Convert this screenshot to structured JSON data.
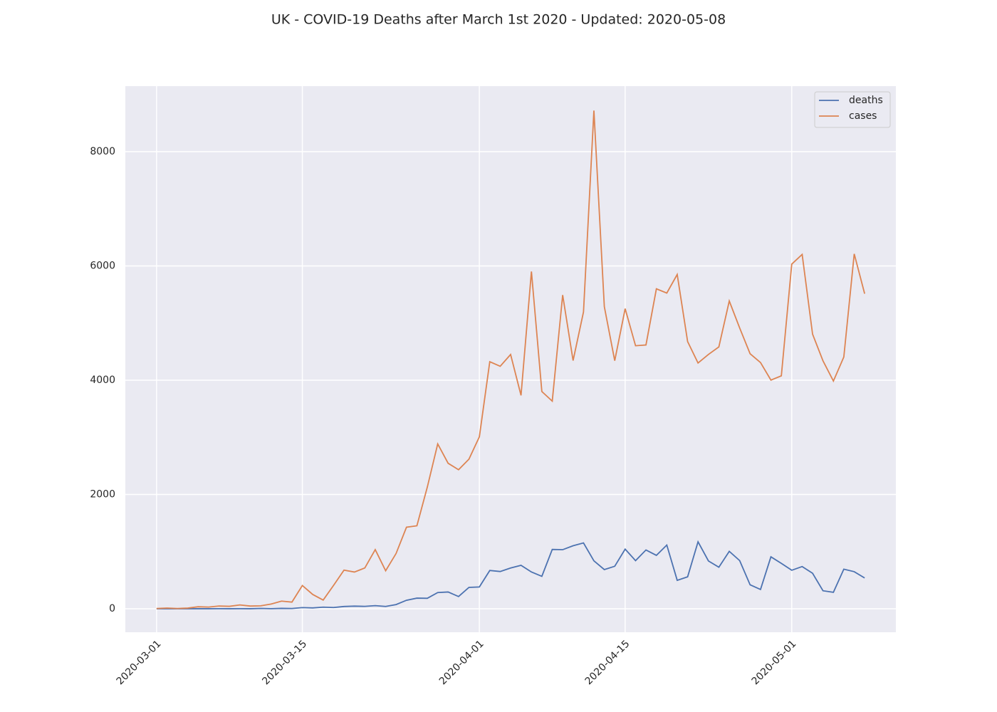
{
  "chart_data": {
    "type": "line",
    "title": "UK - COVID-19 Deaths after March 1st 2020 - Updated: 2020-05-08",
    "x": [
      "2020-03-01",
      "2020-03-02",
      "2020-03-03",
      "2020-03-04",
      "2020-03-05",
      "2020-03-06",
      "2020-03-07",
      "2020-03-08",
      "2020-03-09",
      "2020-03-10",
      "2020-03-11",
      "2020-03-12",
      "2020-03-13",
      "2020-03-14",
      "2020-03-15",
      "2020-03-16",
      "2020-03-17",
      "2020-03-18",
      "2020-03-19",
      "2020-03-20",
      "2020-03-21",
      "2020-03-22",
      "2020-03-23",
      "2020-03-24",
      "2020-03-25",
      "2020-03-26",
      "2020-03-27",
      "2020-03-28",
      "2020-03-29",
      "2020-03-30",
      "2020-03-31",
      "2020-04-01",
      "2020-04-02",
      "2020-04-03",
      "2020-04-04",
      "2020-04-05",
      "2020-04-06",
      "2020-04-07",
      "2020-04-08",
      "2020-04-09",
      "2020-04-10",
      "2020-04-11",
      "2020-04-12",
      "2020-04-13",
      "2020-04-14",
      "2020-04-15",
      "2020-04-16",
      "2020-04-17",
      "2020-04-18",
      "2020-04-19",
      "2020-04-20",
      "2020-04-21",
      "2020-04-22",
      "2020-04-23",
      "2020-04-24",
      "2020-04-25",
      "2020-04-26",
      "2020-04-27",
      "2020-04-28",
      "2020-04-29",
      "2020-04-30",
      "2020-05-01",
      "2020-05-02",
      "2020-05-03",
      "2020-05-04",
      "2020-05-05",
      "2020-05-06",
      "2020-05-07",
      "2020-05-08"
    ],
    "series": [
      {
        "name": "deaths",
        "color": "#4c72b0",
        "values": [
          0,
          0,
          0,
          0,
          1,
          1,
          2,
          1,
          2,
          1,
          6,
          2,
          7,
          5,
          20,
          15,
          28,
          22,
          40,
          46,
          42,
          55,
          41,
          74,
          149,
          186,
          183,
          284,
          294,
          214,
          374,
          382,
          670,
          652,
          714,
          760,
          644,
          568,
          1038,
          1034,
          1103,
          1152,
          839,
          686,
          744,
          1044,
          842,
          1029,
          935,
          1115,
          498,
          559,
          1172,
          837,
          727,
          1005,
          843,
          420,
          338,
          909,
          795,
          674,
          739,
          621,
          315,
          288,
          693,
          649,
          539
        ]
      },
      {
        "name": "cases",
        "color": "#dd8452",
        "values": [
          5,
          13,
          5,
          12,
          35,
          30,
          48,
          43,
          67,
          48,
          52,
          83,
          134,
          117,
          407,
          250,
          152,
          410,
          676,
          643,
          714,
          1035,
          665,
          967,
          1427,
          1452,
          2129,
          2885,
          2546,
          2433,
          2619,
          3009,
          4324,
          4244,
          4450,
          3735,
          5903,
          3802,
          3634,
          5491,
          4344,
          5195,
          8719,
          5288,
          4342,
          5252,
          4603,
          4617,
          5599,
          5525,
          5850,
          4676,
          4301,
          4451,
          4583,
          5386,
          4913,
          4463,
          4309,
          4002,
          4076,
          6032,
          6201,
          4806,
          4339,
          3985,
          4406,
          6211,
          5514
        ]
      }
    ],
    "xlim": [
      "2020-02-27",
      "2020-05-11"
    ],
    "xticks": [
      "2020-03-01",
      "2020-03-15",
      "2020-04-01",
      "2020-04-15",
      "2020-05-01"
    ],
    "ylim": [
      -411,
      9146
    ],
    "yticks": [
      0,
      2000,
      4000,
      6000,
      8000
    ],
    "grid": true,
    "legend": "upper right"
  }
}
